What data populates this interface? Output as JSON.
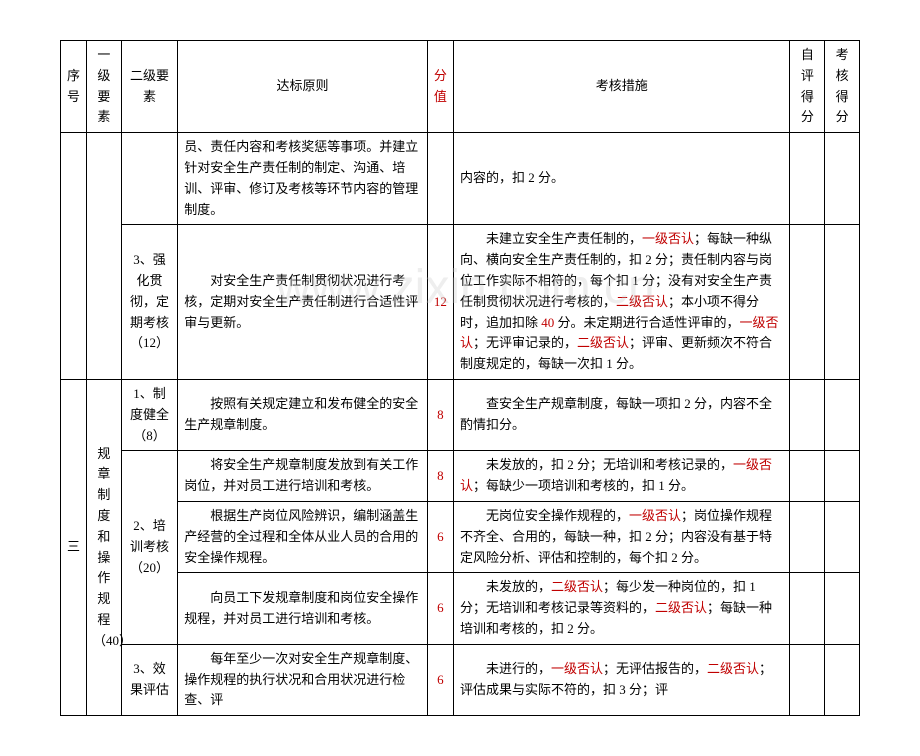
{
  "headers": {
    "seq": "序号",
    "level1": "一级要素",
    "level2": "二级要素",
    "principle": "达标原则",
    "score": "分值",
    "measure": "考核措施",
    "self_score": "自评得分",
    "check_score": "考核得分"
  },
  "watermark": "www.zixin.com.cn",
  "rows": [
    {
      "level2": "",
      "principle": "员、责任内容和考核奖惩等事项。并建立针对安全生产责任制的制定、沟通、培训、评审、修订及考核等环节内容的管理制度。",
      "score": "",
      "measure": "内容的，扣 2 分。",
      "measure_parts": [
        {
          "t": "内容的，扣 2 分。"
        }
      ]
    },
    {
      "level2": "3、强化贯彻，定期考核（12）",
      "principle": "　　对安全生产责任制贯彻状况进行考核，定期对安全生产责任制进行合适性评审与更新。",
      "score": "12",
      "score_red": true,
      "measure_parts": [
        {
          "t": "　　未建立安全生产责任制的，"
        },
        {
          "t": "一级否认",
          "red": true
        },
        {
          "t": "；每缺一种纵向、横向安全生产责任制的，扣 2 分；责任制内容与岗位工作实际不相符的，每个扣 1 分；没有对安全生产责任制贯彻状况进行考核的，"
        },
        {
          "t": "二级否认",
          "red": true
        },
        {
          "t": "；本小项不得分时，追加扣除 "
        },
        {
          "t": "40",
          "red": true
        },
        {
          "t": " 分。未定期进行合适性评审的，"
        },
        {
          "t": "一级否认",
          "red": true
        },
        {
          "t": "；无评审记录的，"
        },
        {
          "t": "二级否认",
          "red": true
        },
        {
          "t": "；评审、更新频次不符合制度规定的，每缺一次扣 1 分。"
        }
      ]
    },
    {
      "seq": "三",
      "level1": "规章制度和操作规程（40）",
      "level2": "1、制度健全（8）",
      "principle": "　　按照有关规定建立和发布健全的安全生产规章制度。",
      "score": "8",
      "score_red": true,
      "measure_parts": [
        {
          "t": "　　查安全生产规章制度，每缺一项扣 2 分，内容不全酌情扣分。"
        }
      ]
    },
    {
      "level2_group": "2、培训考核（20）",
      "principle": "　　将安全生产规章制度发放到有关工作岗位，并对员工进行培训和考核。",
      "score": "8",
      "score_red": true,
      "measure_parts": [
        {
          "t": "　　未发放的，扣 2 分；无培训和考核记录的，"
        },
        {
          "t": "一级否认",
          "red": true
        },
        {
          "t": "；每缺少一项培训和考核的，扣 1 分。"
        }
      ]
    },
    {
      "principle": "　　根据生产岗位风险辨识，编制涵盖生产经营的全过程和全体从业人员的合用的安全操作规程。",
      "score": "6",
      "score_red": true,
      "measure_parts": [
        {
          "t": "　　无岗位安全操作规程的，"
        },
        {
          "t": "一级否认",
          "red": true
        },
        {
          "t": "；岗位操作规程不齐全、合用的，每缺一种，扣 2 分；内容没有基于特定风险分析、评估和控制的，每个扣 2 分。"
        }
      ]
    },
    {
      "principle": "　　向员工下发规章制度和岗位安全操作规程，并对员工进行培训和考核。",
      "score": "6",
      "score_red": true,
      "measure_parts": [
        {
          "t": "　　未发放的，"
        },
        {
          "t": "二级否认",
          "red": true
        },
        {
          "t": "；每少发一种岗位的，扣 1 分；无培训和考核记录等资料的，"
        },
        {
          "t": "二级否认",
          "red": true
        },
        {
          "t": "；每缺一种培训和考核的，扣 2 分。"
        }
      ]
    },
    {
      "level2": "3、效果评估",
      "principle": "　　每年至少一次对安全生产规章制度、操作规程的执行状况和合用状况进行检查、评",
      "score": "6",
      "score_red": true,
      "measure_parts": [
        {
          "t": "　　未进行的，"
        },
        {
          "t": "一级否认",
          "red": true
        },
        {
          "t": "；无评估报告的，"
        },
        {
          "t": "二级否认",
          "red": true
        },
        {
          "t": "；评估成果与实际不符的，扣 3 分；评"
        }
      ]
    }
  ]
}
